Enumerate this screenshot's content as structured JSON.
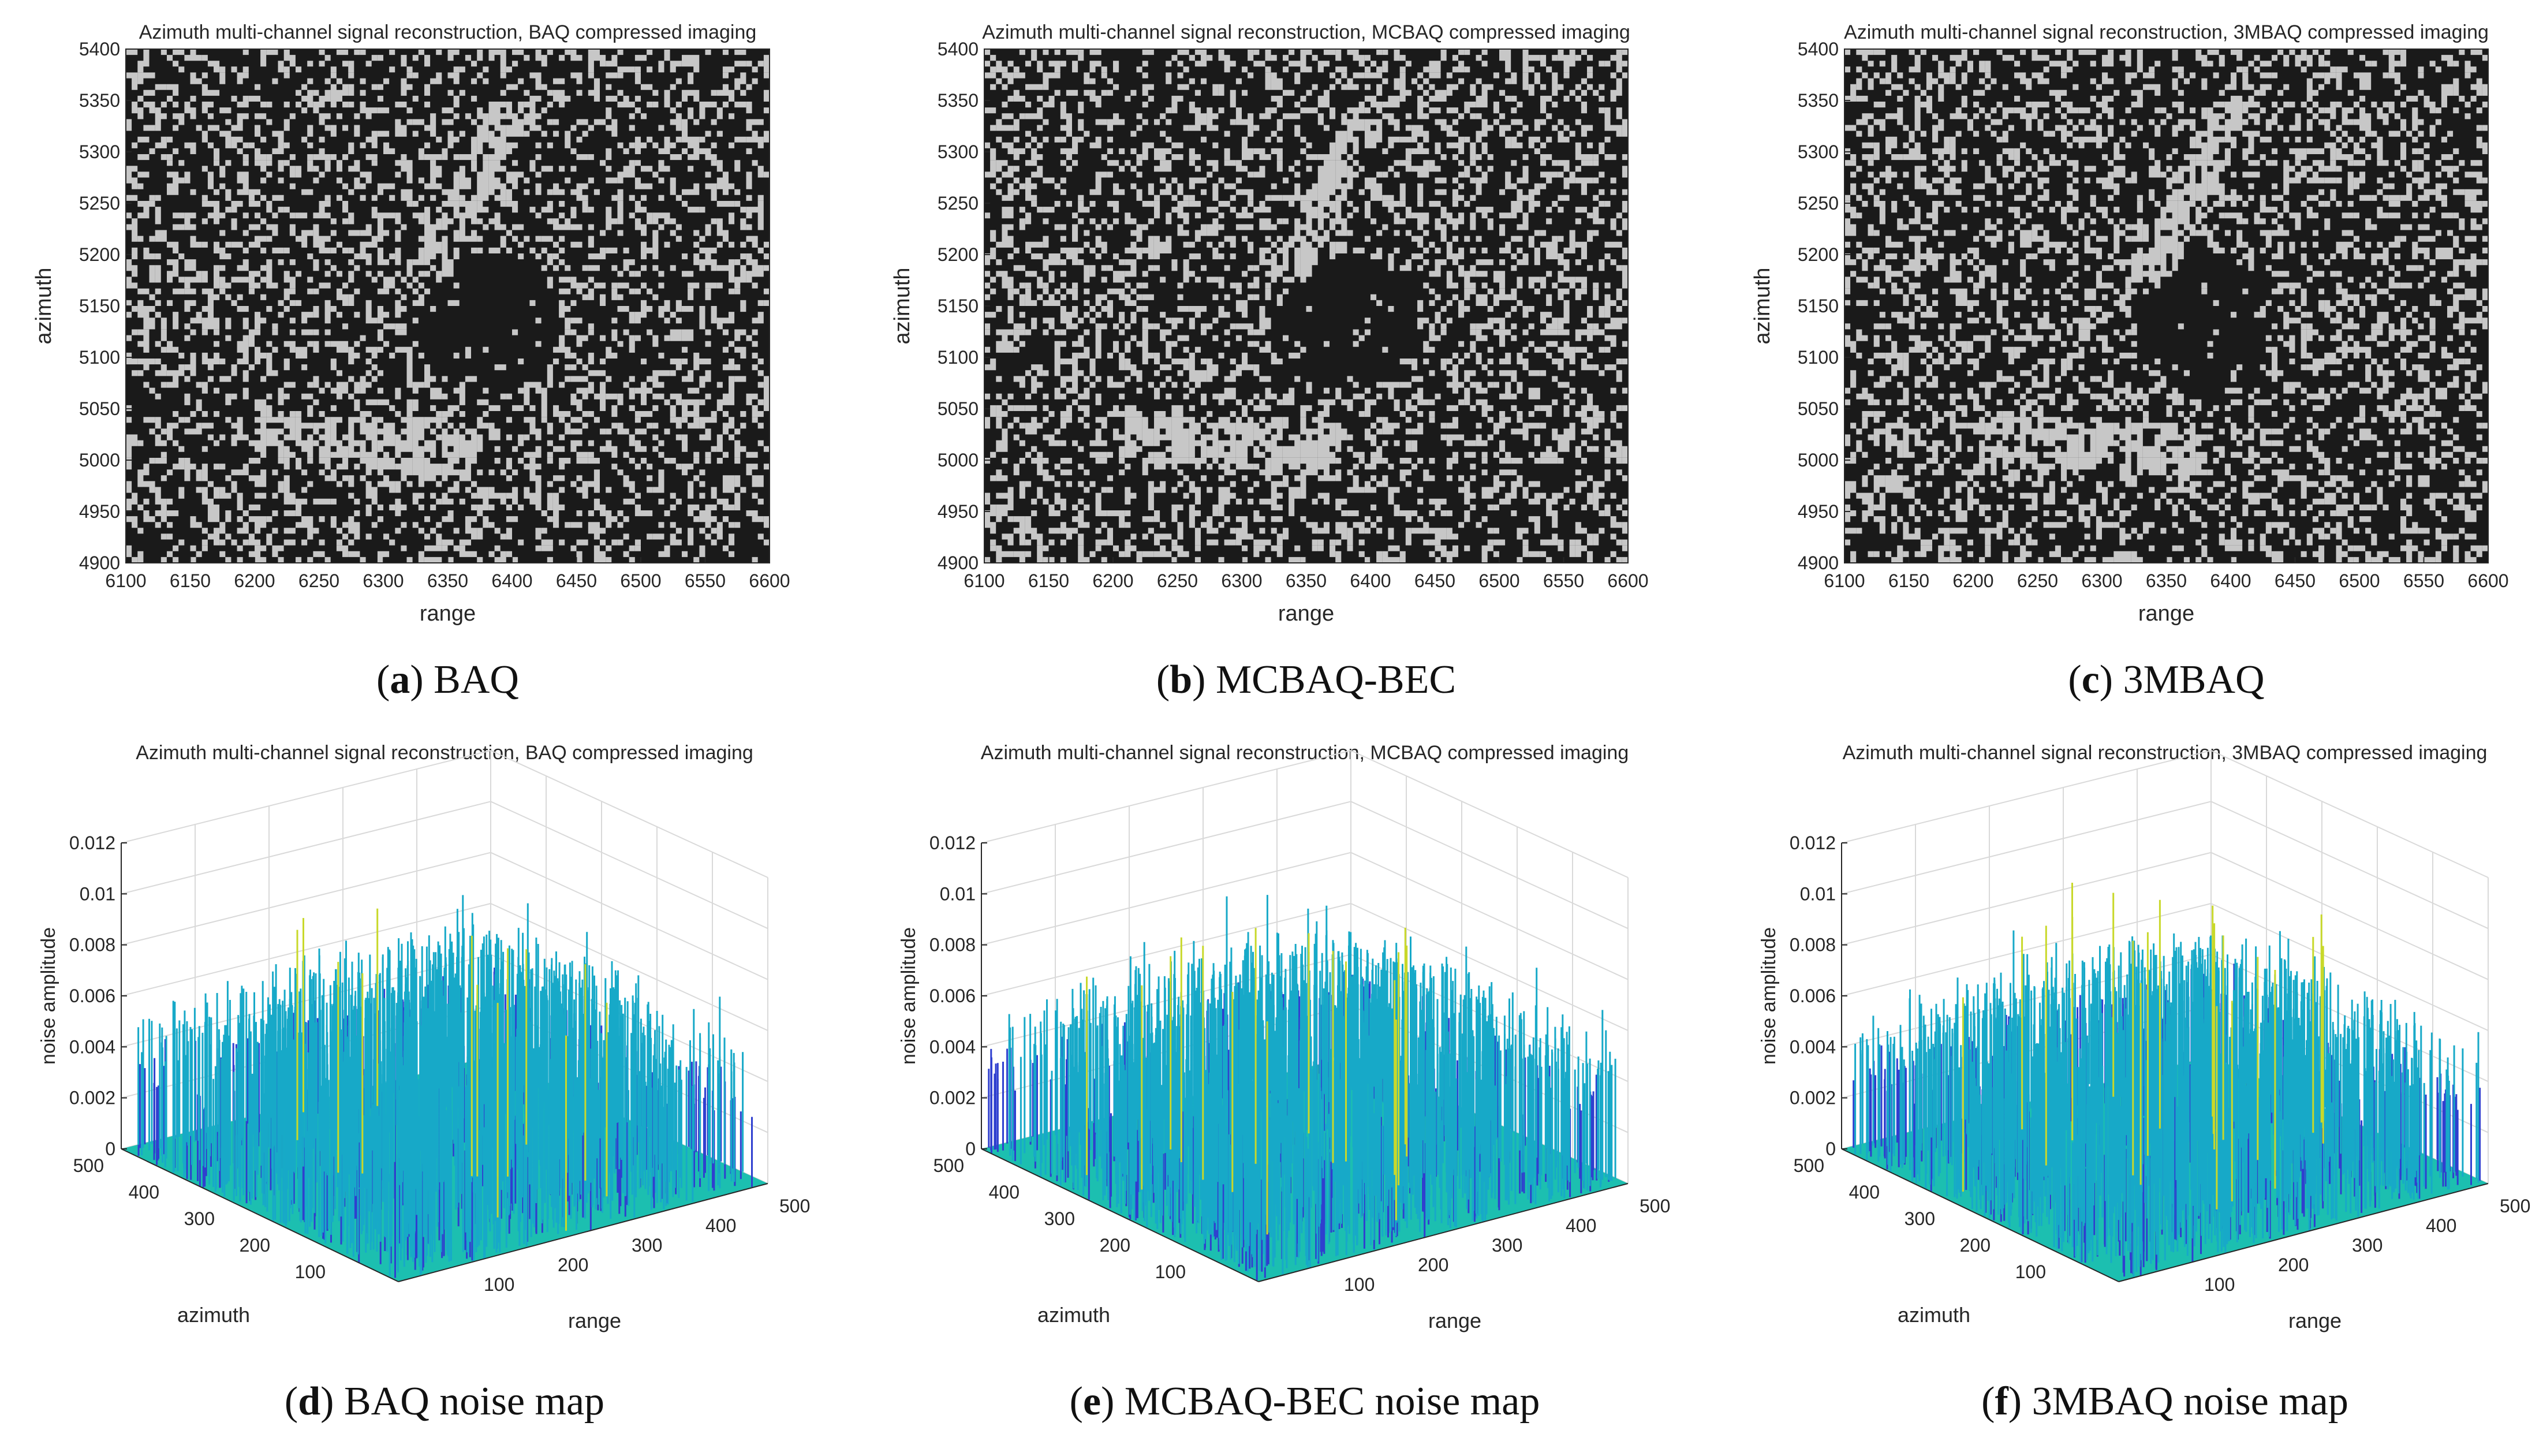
{
  "figure": {
    "panels_top": [
      {
        "id": "a",
        "title": "Azimuth multi-channel signal reconstruction, BAQ compressed imaging",
        "caption_letter": "a",
        "caption_text": " BAQ",
        "xlabel": "range",
        "ylabel": "azimuth",
        "xticks": [
          "6100",
          "6150",
          "6200",
          "6250",
          "6300",
          "6350",
          "6400",
          "6450",
          "6500",
          "6550",
          "6600"
        ],
        "yticks": [
          "4900",
          "4950",
          "5000",
          "5050",
          "5100",
          "5150",
          "5200",
          "5250",
          "5300",
          "5350",
          "5400"
        ],
        "seed": 11
      },
      {
        "id": "b",
        "title": "Azimuth multi-channel signal reconstruction, MCBAQ compressed imaging",
        "caption_letter": "b",
        "caption_text": " MCBAQ-BEC",
        "xlabel": "range",
        "ylabel": "azimuth",
        "xticks": [
          "6100",
          "6150",
          "6200",
          "6250",
          "6300",
          "6350",
          "6400",
          "6450",
          "6500",
          "6550",
          "6600"
        ],
        "yticks": [
          "4900",
          "4950",
          "5000",
          "5050",
          "5100",
          "5150",
          "5200",
          "5250",
          "5300",
          "5350",
          "5400"
        ],
        "seed": 23
      },
      {
        "id": "c",
        "title": "Azimuth multi-channel signal reconstruction, 3MBAQ compressed imaging",
        "caption_letter": "c",
        "caption_text": " 3MBAQ",
        "xlabel": "range",
        "ylabel": "azimuth",
        "xticks": [
          "6100",
          "6150",
          "6200",
          "6250",
          "6300",
          "6350",
          "6400",
          "6450",
          "6500",
          "6550",
          "6600"
        ],
        "yticks": [
          "4900",
          "4950",
          "5000",
          "5050",
          "5100",
          "5150",
          "5200",
          "5250",
          "5300",
          "5350",
          "5400"
        ],
        "seed": 37
      }
    ],
    "panels_bottom": [
      {
        "id": "d",
        "title": "Azimuth multi-channel signal reconstruction, BAQ compressed imaging",
        "caption_letter": "d",
        "caption_text": " BAQ noise map",
        "zlabel": "noise amplitude",
        "xlabel": "range",
        "ylabel": "azimuth",
        "zticks": [
          "0",
          "0.002",
          "0.004",
          "0.006",
          "0.008",
          "0.01",
          "0.012"
        ],
        "range_ticks": [
          "100",
          "200",
          "300",
          "400",
          "500"
        ],
        "azimuth_ticks": [
          "100",
          "200",
          "300",
          "400",
          "500"
        ],
        "seed": 51
      },
      {
        "id": "e",
        "title": "Azimuth multi-channel signal reconstruction, MCBAQ compressed imaging",
        "caption_letter": "e",
        "caption_text": " MCBAQ-BEC noise map",
        "zlabel": "noise amplitude",
        "xlabel": "range",
        "ylabel": "azimuth",
        "zticks": [
          "0",
          "0.002",
          "0.004",
          "0.006",
          "0.008",
          "0.01",
          "0.012"
        ],
        "range_ticks": [
          "100",
          "200",
          "300",
          "400",
          "500"
        ],
        "azimuth_ticks": [
          "100",
          "200",
          "300",
          "400",
          "500"
        ],
        "seed": 67
      },
      {
        "id": "f",
        "title": "Azimuth multi-channel signal reconstruction, 3MBAQ compressed imaging",
        "caption_letter": "f",
        "caption_text": " 3MBAQ noise map",
        "zlabel": "noise amplitude",
        "xlabel": "range",
        "ylabel": "azimuth",
        "zticks": [
          "0",
          "0.002",
          "0.004",
          "0.006",
          "0.008",
          "0.01",
          "0.012"
        ],
        "range_ticks": [
          "100",
          "200",
          "300",
          "400",
          "500"
        ],
        "azimuth_ticks": [
          "100",
          "200",
          "300",
          "400",
          "500"
        ],
        "seed": 83
      }
    ]
  },
  "colors": {
    "sar_dark": "#1a1a1a",
    "sar_bright": "#e6e6e6",
    "surface_low": "#2f3fcf",
    "surface_mid": "#17a9c8",
    "surface_high": "#c8d82a",
    "surface_base": "#1cbfb0",
    "grid": "#d9d9d9",
    "axis": "#262626"
  }
}
